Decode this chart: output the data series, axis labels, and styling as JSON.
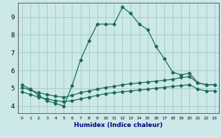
{
  "xlabel": "Humidex (Indice chaleur)",
  "bg_color": "#cce8e8",
  "grid_color": "#aacccc",
  "line_color": "#1a6a5a",
  "xlim": [
    -0.5,
    23.5
  ],
  "ylim": [
    3.6,
    9.8
  ],
  "xticks": [
    0,
    1,
    2,
    3,
    4,
    5,
    6,
    7,
    8,
    9,
    10,
    11,
    12,
    13,
    14,
    15,
    16,
    17,
    18,
    19,
    20,
    21,
    22,
    23
  ],
  "yticks": [
    4,
    5,
    6,
    7,
    8,
    9
  ],
  "curve1_x": [
    0,
    1,
    2,
    3,
    4,
    5,
    6,
    7,
    8,
    9,
    10,
    11,
    12,
    13,
    14,
    15,
    16,
    17,
    18,
    19,
    20,
    21,
    22,
    23
  ],
  "curve1_y": [
    5.2,
    4.95,
    4.6,
    4.3,
    4.15,
    4.0,
    5.15,
    6.6,
    7.65,
    8.6,
    8.6,
    8.6,
    9.55,
    9.2,
    8.6,
    8.3,
    7.35,
    6.65,
    5.9,
    5.75,
    5.85,
    5.3,
    5.2,
    5.2
  ],
  "curve2_x": [
    0,
    1,
    2,
    3,
    4,
    5,
    6,
    7,
    8,
    9,
    10,
    11,
    12,
    13,
    14,
    15,
    16,
    17,
    18,
    19,
    20,
    21,
    22,
    23
  ],
  "curve2_y": [
    5.05,
    4.9,
    4.75,
    4.65,
    4.55,
    4.5,
    4.6,
    4.75,
    4.85,
    4.95,
    5.05,
    5.1,
    5.2,
    5.25,
    5.3,
    5.35,
    5.4,
    5.45,
    5.5,
    5.6,
    5.65,
    5.3,
    5.2,
    5.2
  ],
  "curve3_x": [
    0,
    1,
    2,
    3,
    4,
    5,
    6,
    7,
    8,
    9,
    10,
    11,
    12,
    13,
    14,
    15,
    16,
    17,
    18,
    19,
    20,
    21,
    22,
    23
  ],
  "curve3_y": [
    4.8,
    4.65,
    4.5,
    4.4,
    4.3,
    4.25,
    4.3,
    4.4,
    4.5,
    4.6,
    4.7,
    4.75,
    4.8,
    4.85,
    4.9,
    4.95,
    5.0,
    5.05,
    5.1,
    5.15,
    5.2,
    4.95,
    4.85,
    4.85
  ]
}
